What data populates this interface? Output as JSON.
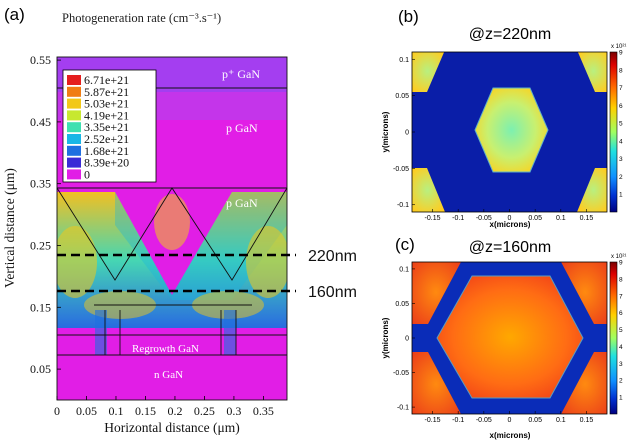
{
  "chart_data": [
    {
      "type": "heatmap",
      "panel": "(a)",
      "title": "Photogeneration rate (cm⁻³.s⁻¹)",
      "xlabel": "Horizontal distance (μm)",
      "ylabel": "Vertical distance (μm)",
      "xlim": [
        0,
        0.39
      ],
      "ylim": [
        0,
        0.555
      ],
      "xticks": [
        "0",
        "0.05",
        "0.1",
        "0.15",
        "0.2",
        "0.25",
        "0.3",
        "0.35"
      ],
      "yticks": [
        "0.05",
        "0.15",
        "0.25",
        "0.35",
        "0.45",
        "0.55"
      ],
      "legend": {
        "placement": "top-left",
        "entries": [
          "6.71e+21",
          "5.87e+21",
          "5.03e+21",
          "4.19e+21",
          "3.35e+21",
          "2.52e+21",
          "1.68e+21",
          "8.39e+20",
          "0"
        ],
        "colors": [
          "#e51e1e",
          "#f07c14",
          "#f2c818",
          "#c7e830",
          "#3ee0b0",
          "#19b6e6",
          "#1f6fe0",
          "#3a2ad6",
          "#e11ee6"
        ]
      },
      "layers": [
        {
          "label": "p⁺ GaN",
          "ymin": 0.5,
          "ymax": 0.55
        },
        {
          "label": "p GaN",
          "ymin": 0.33,
          "ymax": 0.5
        },
        {
          "label": "p GaN",
          "ymin": 0.155,
          "ymax": 0.33
        },
        {
          "label": "Regrowth GaN",
          "ymin": 0.065,
          "ymax": 0.155
        },
        {
          "label": "n GaN",
          "ymin": 0.0,
          "ymax": 0.065
        }
      ],
      "cut_lines": [
        {
          "label": "220nm",
          "y": 0.22
        },
        {
          "label": "160nm",
          "y": 0.16
        }
      ]
    },
    {
      "type": "heatmap",
      "panel": "(b)",
      "title": "@z=220nm",
      "xlabel": "x(microns)",
      "ylabel": "y(microns)",
      "xlim": [
        -0.19,
        0.19
      ],
      "ylim": [
        -0.11,
        0.11
      ],
      "xticks": [
        "-0.15",
        "-0.1",
        "-0.05",
        "0",
        "0.05",
        "0.1",
        "0.15"
      ],
      "yticks": [
        "0.1",
        "0.05",
        "0",
        "-0.05",
        "-0.1"
      ],
      "colorbar": {
        "label": "x 10²¹",
        "ticks": [
          "9",
          "8",
          "7",
          "6",
          "5",
          "4",
          "3",
          "2",
          "1"
        ],
        "range": [
          0,
          9
        ]
      }
    },
    {
      "type": "heatmap",
      "panel": "(c)",
      "title": "@z=160nm",
      "xlabel": "x(microns)",
      "ylabel": "y(microns)",
      "xlim": [
        -0.19,
        0.19
      ],
      "ylim": [
        -0.11,
        0.11
      ],
      "xticks": [
        "-0.15",
        "-0.1",
        "-0.05",
        "0",
        "0.05",
        "0.1",
        "0.15"
      ],
      "yticks": [
        "0.1",
        "0.05",
        "0",
        "-0.05",
        "-0.1"
      ],
      "colorbar": {
        "label": "x 10²¹",
        "ticks": [
          "9",
          "8",
          "7",
          "6",
          "5",
          "4",
          "3",
          "2",
          "1"
        ],
        "range": [
          0,
          9
        ]
      }
    }
  ]
}
